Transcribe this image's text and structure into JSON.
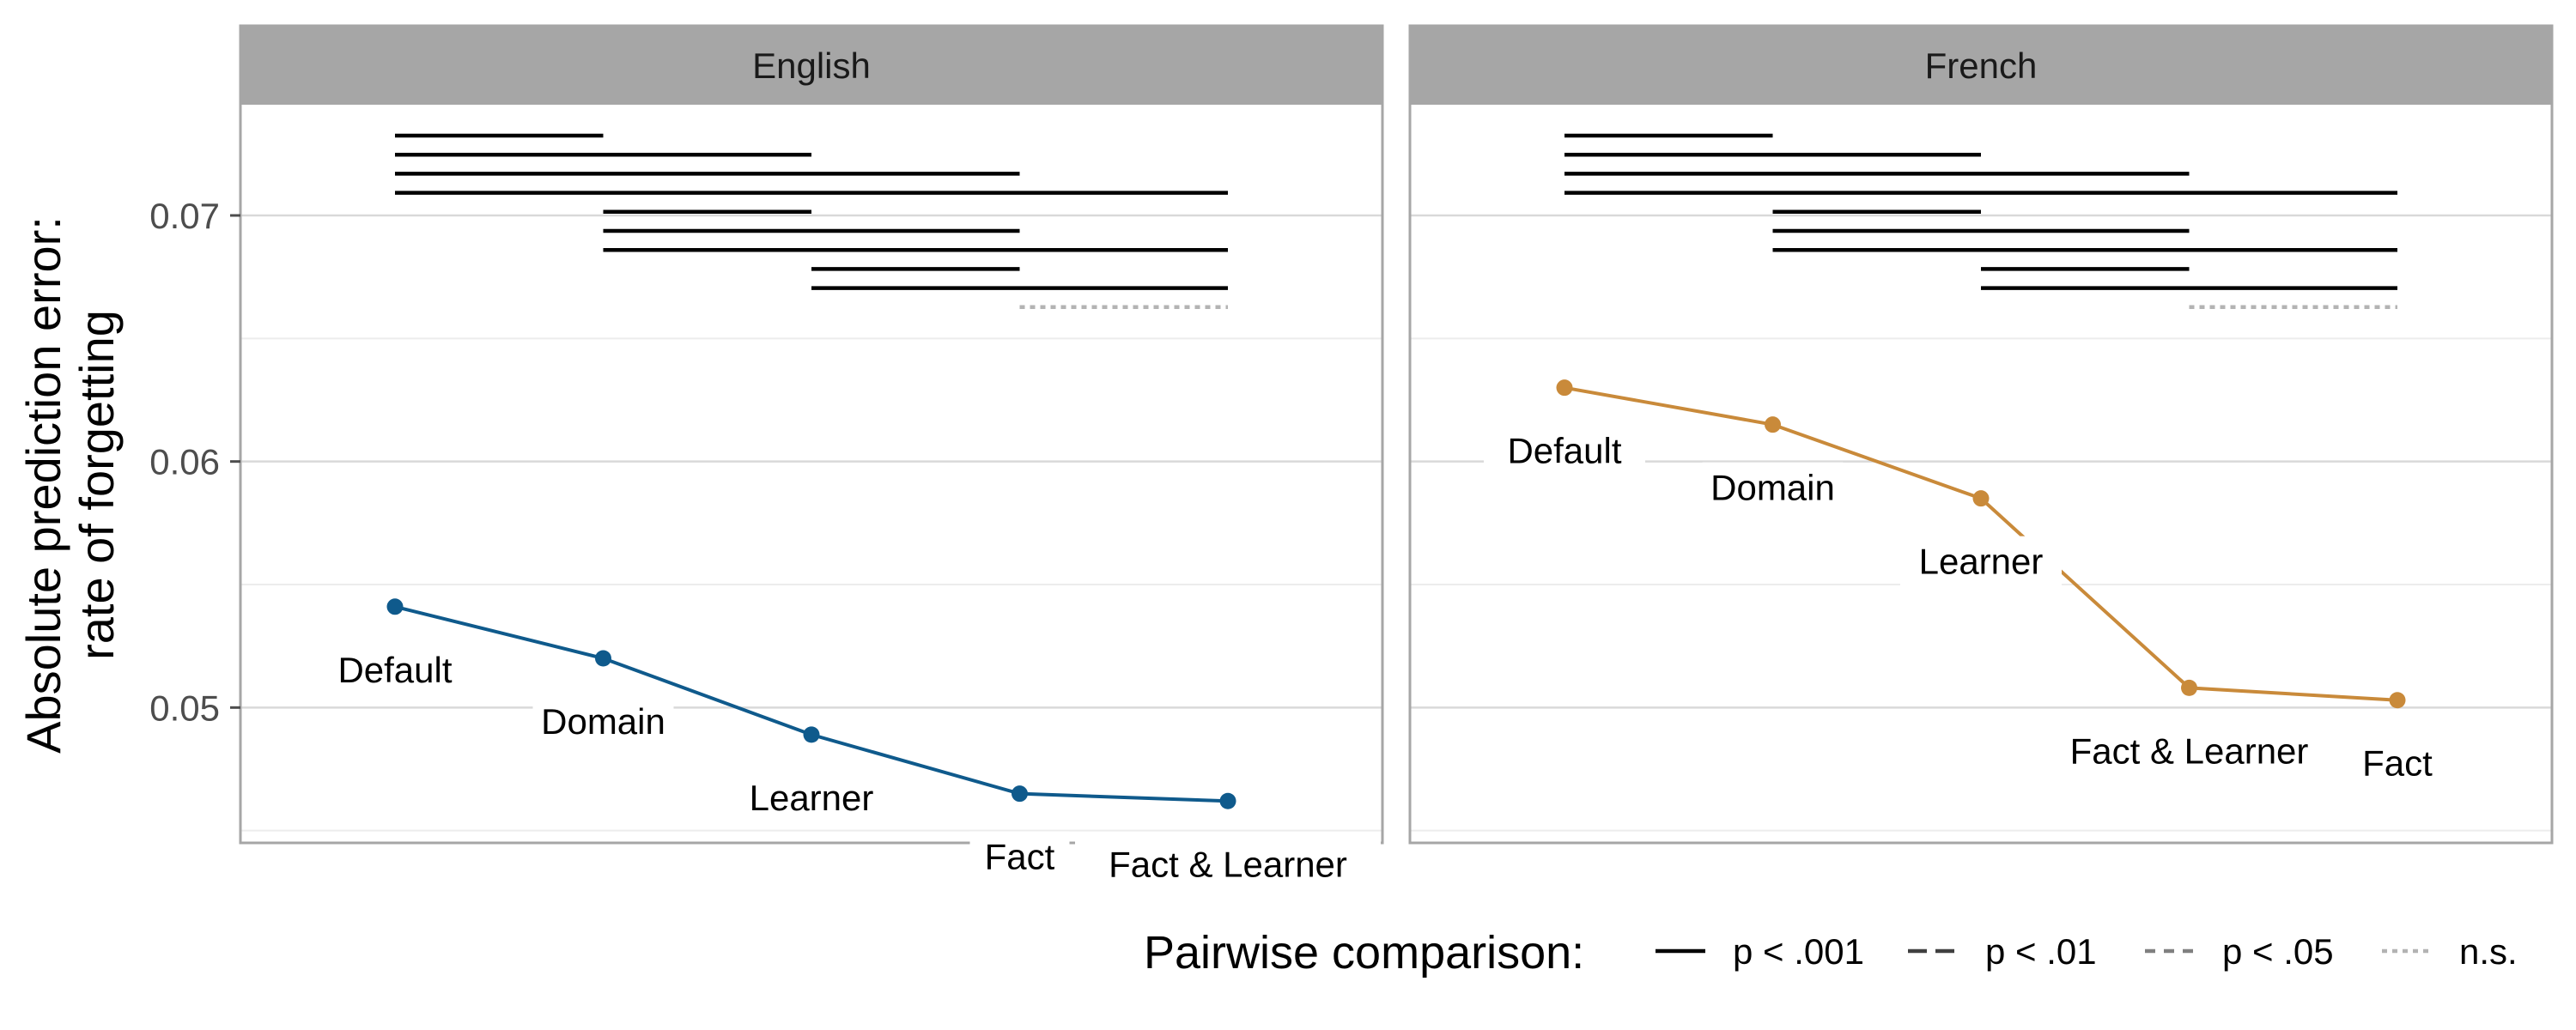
{
  "chart_data": {
    "type": "line",
    "ylabel_line1": "Absolute prediction error:",
    "ylabel_line2": "rate of forgetting",
    "ylim": [
      0.0445,
      0.0745
    ],
    "yticks": [
      0.05,
      0.06,
      0.07
    ],
    "ytick_labels": [
      "0.05",
      "0.06",
      "0.07"
    ],
    "grid": true,
    "legend_position": "bottom-right",
    "legend": {
      "title": "Pairwise comparison:",
      "entries": [
        {
          "label": "p < .001",
          "style": "solid"
        },
        {
          "label": "p < .01",
          "style": "longdash"
        },
        {
          "label": "p < .05",
          "style": "dashed"
        },
        {
          "label": "n.s.",
          "style": "dotted"
        }
      ]
    },
    "panels": [
      {
        "strip": "English",
        "color": "#0f5a8c",
        "points": [
          {
            "x": 1,
            "y": 0.0541,
            "label": "Default"
          },
          {
            "x": 2,
            "y": 0.052,
            "label": "Domain"
          },
          {
            "x": 3,
            "y": 0.0489,
            "label": "Learner"
          },
          {
            "x": 4,
            "y": 0.0465,
            "label": "Fact"
          },
          {
            "x": 5,
            "y": 0.0462,
            "label": "Fact & Learner"
          }
        ],
        "comparisons": [
          {
            "from": 1,
            "to": 2,
            "sig": "p < .001"
          },
          {
            "from": 1,
            "to": 3,
            "sig": "p < .001"
          },
          {
            "from": 1,
            "to": 4,
            "sig": "p < .001"
          },
          {
            "from": 1,
            "to": 5,
            "sig": "p < .001"
          },
          {
            "from": 2,
            "to": 3,
            "sig": "p < .001"
          },
          {
            "from": 2,
            "to": 4,
            "sig": "p < .001"
          },
          {
            "from": 2,
            "to": 5,
            "sig": "p < .001"
          },
          {
            "from": 3,
            "to": 4,
            "sig": "p < .001"
          },
          {
            "from": 3,
            "to": 5,
            "sig": "p < .001"
          },
          {
            "from": 4,
            "to": 5,
            "sig": "n.s."
          }
        ]
      },
      {
        "strip": "French",
        "color": "#c98a3a",
        "points": [
          {
            "x": 1,
            "y": 0.063,
            "label": "Default"
          },
          {
            "x": 2,
            "y": 0.0615,
            "label": "Domain"
          },
          {
            "x": 3,
            "y": 0.0585,
            "label": "Learner"
          },
          {
            "x": 4,
            "y": 0.0508,
            "label": "Fact & Learner"
          },
          {
            "x": 5,
            "y": 0.0503,
            "label": "Fact"
          }
        ],
        "comparisons": [
          {
            "from": 1,
            "to": 2,
            "sig": "p < .001"
          },
          {
            "from": 1,
            "to": 3,
            "sig": "p < .001"
          },
          {
            "from": 1,
            "to": 4,
            "sig": "p < .001"
          },
          {
            "from": 1,
            "to": 5,
            "sig": "p < .001"
          },
          {
            "from": 2,
            "to": 3,
            "sig": "p < .001"
          },
          {
            "from": 2,
            "to": 4,
            "sig": "p < .001"
          },
          {
            "from": 2,
            "to": 5,
            "sig": "p < .001"
          },
          {
            "from": 3,
            "to": 4,
            "sig": "p < .001"
          },
          {
            "from": 3,
            "to": 5,
            "sig": "p < .001"
          },
          {
            "from": 4,
            "to": 5,
            "sig": "n.s."
          }
        ]
      }
    ]
  }
}
